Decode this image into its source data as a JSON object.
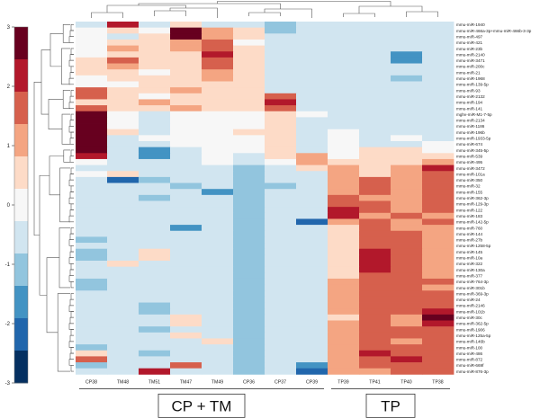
{
  "chart_data": {
    "type": "heatmap",
    "title": "",
    "xlabel": "",
    "ylabel": "",
    "zlim": [
      -3,
      3
    ],
    "colorbar_ticks": [
      "3",
      "2",
      "1",
      "0",
      "-1",
      "-2",
      "-3"
    ],
    "colorbar_colors": [
      "#67001f",
      "#b2182b",
      "#d6604d",
      "#f4a582",
      "#fddbc7",
      "#f7f7f7",
      "#d1e5f0",
      "#92c5de",
      "#4393c3",
      "#2166ac",
      "#053061"
    ],
    "columns": [
      "CP38",
      "TM48",
      "TM51",
      "TM47",
      "TM49",
      "CP36",
      "CP37",
      "CP39",
      "TP39",
      "TP41",
      "TP40",
      "TP38"
    ],
    "rows": [
      "mmu-miR-1940",
      "mmu-miR-466a-3p+mmu-miR-466b-3-3p",
      "mmu-miR-497",
      "mmu-miR-421",
      "mmu-miR-23b",
      "mmu-miR-2140",
      "mmu-miR-3471",
      "mmu-miR-200c",
      "mmu-miR-21",
      "mmu-miR-1968",
      "mmu-miR-139-5p",
      "mmu-miR-93",
      "mmu-miR-2132",
      "mmu-miR-194",
      "mmu-miR-141",
      "mghv-miR-M1-7-5p",
      "mmu-miR-2134",
      "mmu-miR-1186",
      "mmu-miR-196b",
      "mmu-miR-1933-5p",
      "mmu-miR-674",
      "mmu-miR-345-5p",
      "mmu-miR-539",
      "mmu-miR-495",
      "mmu-miR-3472",
      "mmu-miR-101a",
      "mmu-miR-350",
      "mmu-miR-32",
      "mmu-miR-155",
      "mmu-miR-362-3p",
      "mmu-miR-129-3p",
      "mmu-miR-122",
      "mmu-miR-183",
      "mmu-miR-142-5p",
      "mmu-miR-760",
      "mmu-miR-144",
      "mmu-miR-27b",
      "mmu-miR-1258-5p",
      "mmu-miR-145",
      "mmu-miR-10a",
      "mmu-miR-322",
      "mmu-miR-130a",
      "mmu-miR-377",
      "mmu-miR-764-3p",
      "mmu-miR-301b",
      "mmu-miR-369-3p",
      "mmu-miR-24",
      "mmu-miR-2146",
      "mmu-miR-101b",
      "mmu-miR-30c",
      "mmu-miR-362-5p",
      "mmu-miR-1906",
      "mmu-miR-125a-5p",
      "mmu-miR-146b",
      "mmu-miR-100",
      "mmu-miR-486",
      "mmu-miR-872",
      "mmu-miR-669f",
      "mmu-miR-876-3p"
    ],
    "values": [
      [
        -0.3,
        2.3,
        -0.5,
        0.3,
        -0.3,
        -0.5,
        -1,
        -0.6,
        -0.3,
        -0.6,
        -0.3,
        -0.3
      ],
      [
        0,
        0.3,
        0.2,
        3.5,
        1,
        0.4,
        -0.9,
        -0.6,
        -0.3,
        -0.3,
        -0.3,
        -0.3
      ],
      [
        -0.2,
        -0.3,
        0.4,
        3.2,
        0.9,
        0.3,
        -0.8,
        -0.5,
        -0.3,
        -0.5,
        -0.3,
        -0.3
      ],
      [
        0.2,
        0.6,
        0.4,
        1.2,
        1.7,
        -0.2,
        -0.7,
        -0.3,
        -0.3,
        -0.4,
        -0.7,
        -0.6
      ],
      [
        0,
        1.2,
        0.6,
        0.9,
        1.6,
        0.4,
        -0.5,
        -0.4,
        -0.3,
        -0.7,
        -0.6,
        -0.6
      ],
      [
        0.1,
        0.5,
        0.5,
        0.8,
        2.3,
        0.4,
        -0.4,
        -0.5,
        -0.3,
        -0.6,
        -1.9,
        -0.6
      ],
      [
        0.4,
        1.6,
        0.3,
        0.3,
        1.8,
        0.3,
        -0.5,
        -0.6,
        -0.3,
        -0.8,
        -1.7,
        -0.6
      ],
      [
        0.7,
        1.1,
        0.3,
        0.6,
        1.4,
        0.4,
        -0.6,
        -0.5,
        -0.3,
        -0.6,
        -0.6,
        -0.5
      ],
      [
        0.4,
        0.5,
        0.2,
        0.5,
        0.9,
        0.4,
        -0.8,
        -0.6,
        -0.3,
        -0.5,
        -0.8,
        -0.5
      ],
      [
        0.1,
        0.6,
        0.4,
        0.6,
        1.2,
        0.5,
        -0.7,
        -0.6,
        -0.3,
        -0.5,
        -0.9,
        -0.5
      ],
      [
        0.1,
        0.2,
        0.5,
        0.4,
        0.5,
        0.3,
        -0.5,
        -0.5,
        -0.3,
        -0.5,
        -0.6,
        -0.4
      ],
      [
        1.6,
        0.4,
        0.4,
        1,
        0.6,
        0.4,
        -0.5,
        -0.5,
        -0.3,
        -0.3,
        -0.5,
        -0.3
      ],
      [
        1.4,
        0.3,
        0.2,
        0.5,
        0.4,
        0.3,
        1.8,
        -0.6,
        -0.3,
        -0.3,
        -0.3,
        -0.3
      ],
      [
        0.6,
        0.4,
        1,
        0.8,
        0.4,
        0.3,
        2.4,
        -0.5,
        -0.3,
        -0.3,
        -0.3,
        -0.3
      ],
      [
        1.4,
        0.5,
        0.5,
        0.9,
        0.5,
        0.3,
        1.4,
        -0.5,
        -0.3,
        -0.3,
        -0.3,
        -0.3
      ],
      [
        3.5,
        0,
        -0.3,
        0,
        0,
        0.1,
        0.3,
        -0.2,
        -0.3,
        -0.3,
        -0.3,
        -0.3
      ],
      [
        3.5,
        0.2,
        -0.4,
        0,
        0,
        0.2,
        0.3,
        -0.3,
        -0.3,
        -0.3,
        -0.3,
        -0.3
      ],
      [
        3.3,
        0.2,
        -0.4,
        0,
        0,
        0.2,
        0.4,
        -0.3,
        -0.3,
        -0.3,
        -0.3,
        -0.3
      ],
      [
        3.4,
        0.3,
        -0.3,
        0,
        0,
        0.3,
        0.3,
        -0.4,
        -0.2,
        -0.3,
        -0.3,
        -0.3
      ],
      [
        3.2,
        -0.8,
        -0.2,
        0,
        0,
        0.1,
        0.4,
        -0.4,
        -0.2,
        -0.4,
        -0.2,
        -0.3
      ],
      [
        3.1,
        -0.3,
        -0.5,
        0,
        0,
        0.1,
        0.3,
        -0.4,
        -0.2,
        -0.3,
        -0.3,
        -0.2
      ],
      [
        2.5,
        -0.6,
        -1.9,
        -0.5,
        0.2,
        -0.2,
        0.4,
        -0.6,
        -0.2,
        0.4,
        0.3,
        0.2
      ],
      [
        2.2,
        -0.6,
        -1.6,
        -0.7,
        0.1,
        -0.5,
        0.3,
        0.9,
        -0.2,
        0.5,
        0.3,
        0.3
      ],
      [
        0.2,
        -0.4,
        -0.6,
        -0.4,
        0,
        -0.6,
        0.1,
        1.2,
        0.4,
        0.5,
        0.6,
        0.9
      ],
      [
        -0.5,
        -0.7,
        -0.8,
        -0.5,
        -0.4,
        -1.1,
        -0.8,
        0.3,
        0.9,
        0.6,
        0.9,
        2.3
      ],
      [
        -0.2,
        0.4,
        -0.7,
        -0.6,
        -0.6,
        -1.2,
        -0.8,
        -0.3,
        1.3,
        0.8,
        1,
        1.8
      ],
      [
        -0.3,
        -2,
        -1,
        -0.8,
        -0.5,
        -1.2,
        -0.8,
        -0.4,
        1.2,
        1.4,
        1.2,
        1.4
      ],
      [
        -0.4,
        -0.5,
        -0.6,
        -0.9,
        -0.6,
        -1.2,
        -0.9,
        -0.5,
        1.1,
        1.6,
        1.3,
        1.6
      ],
      [
        -0.3,
        -0.4,
        -0.7,
        -0.5,
        -1.7,
        -1.2,
        -0.8,
        -0.4,
        1.3,
        1.6,
        1.2,
        1.5
      ],
      [
        -0.4,
        -0.7,
        -0.9,
        -0.5,
        -0.6,
        -1.2,
        -0.8,
        -0.6,
        1.9,
        1.2,
        1.1,
        1.5
      ],
      [
        -0.5,
        -0.6,
        -0.4,
        -0.5,
        -0.6,
        -1.2,
        -0.8,
        -0.5,
        1.6,
        1.4,
        1.2,
        1.6
      ],
      [
        -0.5,
        -0.6,
        -0.6,
        -0.5,
        -0.6,
        -1.2,
        -0.8,
        -0.5,
        2.3,
        1.4,
        1.3,
        1.5
      ],
      [
        -0.6,
        -0.6,
        -0.7,
        -0.4,
        -0.6,
        -1.2,
        -0.8,
        -0.6,
        2.1,
        1.2,
        1.4,
        1.3
      ],
      [
        -0.3,
        -0.5,
        -0.6,
        -0.8,
        -0.4,
        -1.2,
        -0.8,
        -2,
        1.3,
        1.5,
        1.1,
        1.4
      ],
      [
        -0.5,
        -0.5,
        -0.5,
        -1.5,
        -0.4,
        -1.3,
        -0.8,
        -0.6,
        0.7,
        1.4,
        1.3,
        1.3
      ],
      [
        -0.6,
        -0.4,
        -0.3,
        -0.6,
        -0.4,
        -1.2,
        -0.7,
        -0.5,
        0.7,
        1.8,
        1.4,
        1.2
      ],
      [
        -0.9,
        -0.5,
        -0.6,
        -0.6,
        -0.5,
        -1.2,
        -0.8,
        -0.3,
        0.7,
        1.9,
        1.5,
        1.1
      ],
      [
        -0.6,
        -0.4,
        -0.4,
        -0.5,
        -0.6,
        -1.2,
        -0.8,
        -0.3,
        0.6,
        1.9,
        1.5,
        1.0
      ],
      [
        -1.3,
        -0.5,
        0.7,
        -0.6,
        -0.3,
        -1.2,
        -0.8,
        -0.5,
        0.8,
        2.0,
        1.6,
        1.2
      ],
      [
        -1.1,
        -0.6,
        0.4,
        -0.5,
        -0.3,
        -1.2,
        -0.8,
        -0.6,
        0.8,
        2.0,
        1.7,
        1.2
      ],
      [
        -0.7,
        0.5,
        -0.4,
        -0.6,
        -0.3,
        -1.2,
        -0.7,
        -0.4,
        0.6,
        2.0,
        1.4,
        1.1
      ],
      [
        -0.6,
        -0.5,
        -0.8,
        -0.6,
        -0.4,
        -1.2,
        -0.8,
        -0.5,
        0.7,
        2.0,
        1.6,
        1.3
      ],
      [
        -0.8,
        -0.6,
        -0.5,
        -0.5,
        -0.6,
        -1.2,
        -0.8,
        -0.6,
        0.8,
        1.9,
        1.7,
        1.3
      ],
      [
        -0.9,
        -0.6,
        -0.5,
        -0.5,
        -0.6,
        -1.2,
        -0.8,
        -0.5,
        1.0,
        1.9,
        1.7,
        1.4
      ],
      [
        -0.9,
        -0.4,
        -0.6,
        -0.7,
        -0.6,
        -1.2,
        -0.8,
        -0.4,
        1.1,
        1.9,
        1.6,
        1.3
      ],
      [
        -0.5,
        -0.6,
        -0.7,
        -0.4,
        -0.6,
        -1.2,
        -0.8,
        -0.6,
        1.0,
        1.8,
        1.7,
        1.6
      ],
      [
        -0.6,
        -0.6,
        -0.8,
        -0.5,
        -0.5,
        -1.2,
        -0.8,
        -0.5,
        1.1,
        1.9,
        1.4,
        1.4
      ],
      [
        -0.8,
        -0.4,
        -0.9,
        -0.3,
        -0.3,
        -1.2,
        -0.8,
        -0.4,
        1.0,
        1.8,
        1.5,
        1.5
      ],
      [
        -0.7,
        -0.5,
        -1.0,
        -0.4,
        -0.4,
        -1.2,
        -0.8,
        -0.6,
        0.9,
        1.8,
        1.4,
        2.0
      ],
      [
        -0.6,
        -0.4,
        -0.7,
        0.5,
        -0.4,
        -1.2,
        -0.8,
        -0.5,
        0.8,
        1.7,
        1.3,
        2.6
      ],
      [
        -0.4,
        -0.6,
        -0.7,
        0.3,
        -0.4,
        -1.2,
        -0.8,
        -0.4,
        1.0,
        1.6,
        1.3,
        2.3
      ],
      [
        -0.6,
        -0.6,
        -1.1,
        -0.5,
        -0.5,
        -1.2,
        -0.8,
        -0.5,
        1.1,
        1.8,
        1.4,
        1.6
      ],
      [
        -0.8,
        -0.5,
        -0.8,
        0.4,
        -0.6,
        -1.2,
        -0.8,
        -0.5,
        1.0,
        1.5,
        1.5,
        1.9
      ],
      [
        -0.4,
        -0.4,
        -0.6,
        -0.4,
        0.8,
        -1.2,
        -0.8,
        -0.6,
        1.0,
        1.4,
        1.3,
        1.7
      ],
      [
        -1.0,
        -0.5,
        -0.7,
        -0.6,
        -0.4,
        -1.2,
        -0.8,
        -0.5,
        0.9,
        1.4,
        1.4,
        1.5
      ],
      [
        0.4,
        -0.8,
        -1.0,
        -0.6,
        -0.5,
        -1.2,
        -0.8,
        -0.7,
        1.0,
        2.4,
        1.6,
        1.4
      ],
      [
        1.6,
        -0.6,
        -0.6,
        -0.8,
        -0.5,
        -1.2,
        -0.8,
        -0.6,
        1.2,
        1.5,
        2.0,
        1.5
      ],
      [
        -1.0,
        -0.7,
        -0.8,
        1.8,
        -0.6,
        -1.2,
        -0.8,
        -1.6,
        1.0,
        1.4,
        1.7,
        1.4
      ],
      [
        -0.8,
        -0.5,
        2.4,
        -0.5,
        -0.7,
        -1.2,
        -0.8,
        -2.0,
        1.0,
        1.3,
        1.5,
        1.4
      ]
    ],
    "groups": [
      {
        "label": "CP + TM",
        "columns": [
          "CP38",
          "TM48",
          "TM51",
          "TM47",
          "TM49",
          "CP36",
          "CP37",
          "CP39"
        ]
      },
      {
        "label": "TP",
        "columns": [
          "TP39",
          "TP41",
          "TP40",
          "TP38"
        ]
      }
    ],
    "legend": "left"
  }
}
